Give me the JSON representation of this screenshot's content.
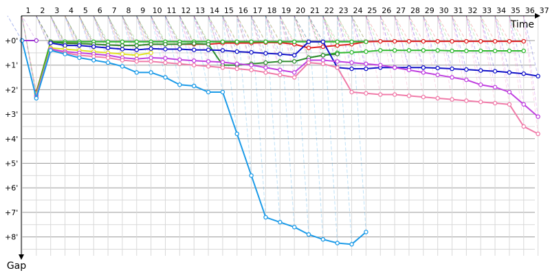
{
  "chart_data": {
    "type": "line",
    "xlabel": "Time",
    "ylabel": "Gap",
    "x_ticks": [
      "1",
      "2",
      "3",
      "4",
      "5",
      "6",
      "7",
      "8",
      "9",
      "10",
      "11",
      "12",
      "13",
      "14",
      "15",
      "16",
      "17",
      "18",
      "19",
      "20",
      "21",
      "22",
      "23",
      "24",
      "25",
      "26",
      "27",
      "28",
      "29",
      "30",
      "31",
      "32",
      "33",
      "34",
      "35",
      "36",
      "37"
    ],
    "y_ticks": [
      "+0'",
      "+1'",
      "+2'",
      "+3'",
      "+4'",
      "+5'",
      "+6'",
      "+7'",
      "+8'"
    ],
    "ylim": [
      0,
      8.6
    ],
    "y_unit": "minutes",
    "grid": true,
    "series": [
      {
        "color": "#9b30d0",
        "values": [
          [
            1,
            0
          ],
          [
            2,
            0
          ]
        ]
      },
      {
        "color": "#e02020",
        "values": [
          [
            2,
            2.1
          ],
          [
            3,
            0.05
          ],
          [
            4,
            0.1
          ],
          [
            5,
            0.12
          ],
          [
            6,
            0.15
          ],
          [
            7,
            0.18
          ],
          [
            8,
            0.2
          ],
          [
            9,
            0.2
          ],
          [
            10,
            0.15
          ],
          [
            11,
            0.15
          ],
          [
            12,
            0.15
          ],
          [
            13,
            0.15
          ],
          [
            14,
            0.15
          ],
          [
            15,
            0.1
          ],
          [
            16,
            0.1
          ],
          [
            17,
            0.1
          ],
          [
            18,
            0.08
          ],
          [
            19,
            0.08
          ],
          [
            20,
            0.15
          ],
          [
            21,
            0.3
          ],
          [
            22,
            0.25
          ],
          [
            23,
            0.2
          ],
          [
            24,
            0.15
          ],
          [
            25,
            0.05
          ],
          [
            26,
            0.03
          ],
          [
            27,
            0.03
          ],
          [
            28,
            0.03
          ],
          [
            29,
            0.03
          ],
          [
            30,
            0.03
          ],
          [
            31,
            0.03
          ],
          [
            32,
            0.03
          ],
          [
            33,
            0.03
          ],
          [
            34,
            0.03
          ],
          [
            35,
            0.03
          ],
          [
            36,
            0.03
          ]
        ]
      },
      {
        "color": "#2db82d",
        "values": [
          [
            2,
            2.15
          ],
          [
            3,
            0.05
          ],
          [
            4,
            0.05
          ],
          [
            5,
            0.05
          ],
          [
            6,
            0.05
          ],
          [
            7,
            0.05
          ],
          [
            8,
            0.05
          ],
          [
            9,
            0.05
          ],
          [
            10,
            0.05
          ],
          [
            11,
            0.05
          ],
          [
            12,
            0.05
          ],
          [
            13,
            0.05
          ],
          [
            14,
            0.05
          ],
          [
            15,
            0.05
          ],
          [
            16,
            0.05
          ],
          [
            17,
            0.05
          ],
          [
            18,
            0.05
          ],
          [
            19,
            0.05
          ],
          [
            20,
            0.05
          ],
          [
            21,
            0.05
          ],
          [
            22,
            0.05
          ],
          [
            23,
            0.05
          ],
          [
            24,
            0.05
          ],
          [
            25,
            0.05
          ]
        ]
      },
      {
        "color": "#2db82d",
        "values": [
          [
            21,
            0.7
          ],
          [
            22,
            0.6
          ],
          [
            23,
            0.5
          ],
          [
            24,
            0.48
          ],
          [
            25,
            0.45
          ],
          [
            26,
            0.4
          ],
          [
            27,
            0.4
          ],
          [
            28,
            0.4
          ],
          [
            29,
            0.4
          ],
          [
            30,
            0.4
          ],
          [
            31,
            0.42
          ],
          [
            32,
            0.42
          ],
          [
            33,
            0.42
          ],
          [
            34,
            0.42
          ],
          [
            35,
            0.42
          ],
          [
            36,
            0.42
          ]
        ]
      },
      {
        "color": "#2e8b2e",
        "values": [
          [
            3,
            0.05
          ],
          [
            4,
            0.12
          ],
          [
            5,
            0.12
          ],
          [
            6,
            0.15
          ],
          [
            7,
            0.18
          ],
          [
            8,
            0.2
          ],
          [
            9,
            0.2
          ],
          [
            10,
            0.15
          ],
          [
            11,
            0.15
          ],
          [
            12,
            0.15
          ],
          [
            13,
            0.12
          ],
          [
            14,
            0.15
          ],
          [
            15,
            1.0
          ],
          [
            16,
            1.0
          ],
          [
            17,
            0.95
          ],
          [
            18,
            0.9
          ],
          [
            19,
            0.85
          ],
          [
            20,
            0.85
          ],
          [
            21,
            0.7
          ],
          [
            22,
            0.6
          ],
          [
            23,
            0.55
          ]
        ]
      },
      {
        "color": "#1010c8",
        "values": [
          [
            3,
            0.1
          ],
          [
            4,
            0.2
          ],
          [
            5,
            0.2
          ],
          [
            6,
            0.25
          ],
          [
            7,
            0.3
          ],
          [
            8,
            0.35
          ],
          [
            9,
            0.38
          ],
          [
            10,
            0.33
          ],
          [
            11,
            0.35
          ],
          [
            12,
            0.35
          ],
          [
            13,
            0.38
          ],
          [
            14,
            0.38
          ],
          [
            15,
            0.4
          ],
          [
            16,
            0.45
          ],
          [
            17,
            0.48
          ],
          [
            18,
            0.52
          ],
          [
            19,
            0.55
          ],
          [
            20,
            0.6
          ],
          [
            21,
            0.05
          ],
          [
            22,
            0.05
          ],
          [
            23,
            1.1
          ],
          [
            24,
            1.15
          ],
          [
            25,
            1.15
          ],
          [
            26,
            1.1
          ],
          [
            27,
            1.1
          ],
          [
            28,
            1.1
          ],
          [
            29,
            1.1
          ],
          [
            30,
            1.12
          ],
          [
            31,
            1.15
          ],
          [
            32,
            1.18
          ],
          [
            33,
            1.22
          ],
          [
            34,
            1.25
          ],
          [
            35,
            1.3
          ],
          [
            36,
            1.35
          ],
          [
            37,
            1.45
          ]
        ]
      },
      {
        "color": "#e0e020",
        "values": [
          [
            2,
            2.2
          ],
          [
            3,
            0.3
          ],
          [
            4,
            0.35
          ],
          [
            5,
            0.4
          ],
          [
            6,
            0.45
          ],
          [
            7,
            0.5
          ],
          [
            8,
            0.55
          ],
          [
            9,
            0.6
          ],
          [
            10,
            0.5
          ]
        ]
      },
      {
        "color": "#c040e0",
        "values": [
          [
            2,
            2.25
          ],
          [
            3,
            0.35
          ],
          [
            4,
            0.45
          ],
          [
            5,
            0.5
          ],
          [
            6,
            0.55
          ],
          [
            7,
            0.6
          ],
          [
            8,
            0.7
          ],
          [
            9,
            0.75
          ],
          [
            10,
            0.7
          ],
          [
            11,
            0.72
          ],
          [
            12,
            0.78
          ],
          [
            13,
            0.82
          ],
          [
            14,
            0.85
          ],
          [
            15,
            0.88
          ],
          [
            16,
            0.95
          ],
          [
            17,
            1.0
          ],
          [
            18,
            1.1
          ],
          [
            19,
            1.2
          ],
          [
            20,
            1.3
          ],
          [
            21,
            0.8
          ],
          [
            22,
            0.8
          ],
          [
            23,
            0.85
          ],
          [
            24,
            0.9
          ],
          [
            25,
            0.95
          ],
          [
            26,
            1.0
          ],
          [
            27,
            1.1
          ],
          [
            28,
            1.2
          ],
          [
            29,
            1.3
          ],
          [
            30,
            1.4
          ],
          [
            31,
            1.5
          ],
          [
            32,
            1.6
          ],
          [
            33,
            1.8
          ],
          [
            34,
            1.9
          ],
          [
            35,
            2.1
          ],
          [
            36,
            2.6
          ],
          [
            37,
            3.1
          ]
        ]
      },
      {
        "color": "#f07aa8",
        "values": [
          [
            2,
            2.3
          ],
          [
            3,
            0.4
          ],
          [
            4,
            0.5
          ],
          [
            5,
            0.6
          ],
          [
            6,
            0.65
          ],
          [
            7,
            0.7
          ],
          [
            8,
            0.8
          ],
          [
            9,
            0.85
          ],
          [
            10,
            0.85
          ],
          [
            11,
            0.9
          ],
          [
            12,
            0.95
          ],
          [
            13,
            1.0
          ],
          [
            14,
            1.05
          ],
          [
            15,
            1.1
          ],
          [
            16,
            1.15
          ],
          [
            17,
            1.2
          ],
          [
            18,
            1.3
          ],
          [
            19,
            1.4
          ],
          [
            20,
            1.5
          ],
          [
            21,
            0.9
          ],
          [
            22,
            0.95
          ],
          [
            23,
            1.1
          ],
          [
            24,
            2.1
          ],
          [
            25,
            2.15
          ],
          [
            26,
            2.2
          ],
          [
            27,
            2.2
          ],
          [
            28,
            2.25
          ],
          [
            29,
            2.3
          ],
          [
            30,
            2.35
          ],
          [
            31,
            2.4
          ],
          [
            32,
            2.45
          ],
          [
            33,
            2.5
          ],
          [
            34,
            2.55
          ],
          [
            35,
            2.6
          ],
          [
            36,
            3.5
          ],
          [
            37,
            3.8
          ]
        ]
      },
      {
        "color": "#1a9ae8",
        "values": [
          [
            1,
            0
          ],
          [
            2,
            2.35
          ],
          [
            3,
            0.4
          ],
          [
            4,
            0.55
          ],
          [
            5,
            0.7
          ],
          [
            6,
            0.8
          ],
          [
            7,
            0.9
          ],
          [
            8,
            1.05
          ],
          [
            9,
            1.3
          ],
          [
            10,
            1.3
          ],
          [
            11,
            1.5
          ],
          [
            12,
            1.8
          ],
          [
            13,
            1.85
          ],
          [
            14,
            2.1
          ],
          [
            15,
            2.1
          ],
          [
            16,
            3.8
          ],
          [
            17,
            5.5
          ],
          [
            18,
            7.2
          ],
          [
            19,
            7.4
          ],
          [
            20,
            7.6
          ],
          [
            21,
            7.9
          ],
          [
            22,
            8.1
          ],
          [
            23,
            8.25
          ],
          [
            24,
            8.3
          ],
          [
            25,
            7.8
          ]
        ]
      }
    ]
  }
}
